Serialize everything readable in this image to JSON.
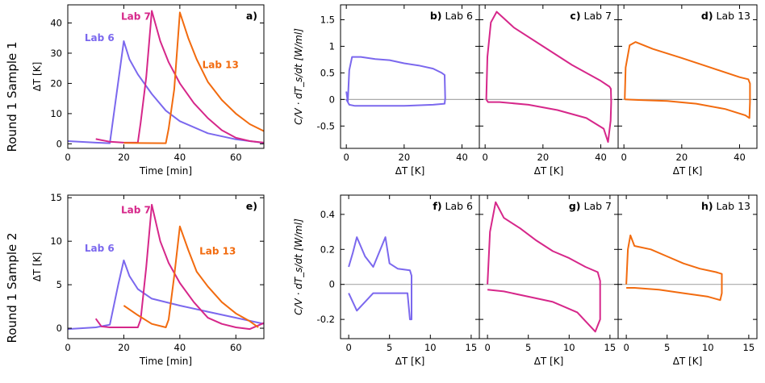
{
  "row_labels": [
    "Round 1 Sample 1",
    "Round 1 Sample 2"
  ],
  "colors": {
    "lab6": "#7b68ee",
    "lab7": "#d6278a",
    "lab13": "#f26b0f",
    "zero_line": "#aaaaaa"
  },
  "chart_data": [
    {
      "type": "line",
      "panel": "a)",
      "title": "",
      "xlabel": "Time  [min]",
      "ylabel": "ΔT   [K]",
      "xlim": [
        0,
        70
      ],
      "ylim": [
        -1.5,
        46
      ],
      "xticks": [
        0,
        20,
        40,
        60
      ],
      "yticks": [
        0,
        10,
        20,
        30,
        40
      ],
      "series": [
        {
          "name": "Lab 6",
          "color_key": "lab6",
          "points": [
            [
              0,
              0.9
            ],
            [
              10,
              0.4
            ],
            [
              15,
              0.2
            ],
            [
              20,
              34
            ],
            [
              22,
              28
            ],
            [
              25,
              23
            ],
            [
              30,
              16.5
            ],
            [
              35,
              11
            ],
            [
              40,
              7.5
            ],
            [
              50,
              3.5
            ],
            [
              60,
              1.5
            ],
            [
              70,
              0.3
            ]
          ]
        },
        {
          "name": "Lab 7",
          "color_key": "lab7",
          "points": [
            [
              10,
              1.6
            ],
            [
              15,
              0.7
            ],
            [
              20,
              0.4
            ],
            [
              25,
              0.4
            ],
            [
              26,
              7
            ],
            [
              28,
              22
            ],
            [
              30,
              44
            ],
            [
              33,
              34
            ],
            [
              36,
              27
            ],
            [
              40,
              20
            ],
            [
              45,
              13.5
            ],
            [
              50,
              8.5
            ],
            [
              55,
              4.5
            ],
            [
              60,
              2
            ],
            [
              65,
              0.9
            ],
            [
              70,
              0.4
            ]
          ]
        },
        {
          "name": "Lab 13",
          "color_key": "lab13",
          "points": [
            [
              20,
              0.3
            ],
            [
              35,
              0.2
            ],
            [
              36,
              5
            ],
            [
              38,
              18
            ],
            [
              40,
              43.5
            ],
            [
              43,
              35
            ],
            [
              46,
              28
            ],
            [
              50,
              20.5
            ],
            [
              55,
              14.5
            ],
            [
              60,
              10
            ],
            [
              65,
              6.5
            ],
            [
              70,
              4.2
            ]
          ]
        }
      ]
    },
    {
      "type": "line",
      "panel": "b)",
      "title": "Lab 6",
      "xlabel": "ΔT   [K]",
      "ylabel": "C/V · dT_s/dt   [W/ml]",
      "xlim": [
        -2,
        46
      ],
      "ylim": [
        -0.92,
        1.78
      ],
      "xticks": [
        0,
        20,
        40
      ],
      "yticks": [
        -0.5,
        0.0,
        0.5,
        1.0,
        1.5
      ],
      "series": [
        {
          "name": "",
          "color_key": "lab6",
          "points": [
            [
              0,
              0.15
            ],
            [
              0.5,
              -0.05
            ],
            [
              1,
              0.55
            ],
            [
              2,
              0.8
            ],
            [
              5,
              0.8
            ],
            [
              10,
              0.76
            ],
            [
              15,
              0.74
            ],
            [
              20,
              0.68
            ],
            [
              25,
              0.64
            ],
            [
              30,
              0.58
            ],
            [
              33,
              0.5
            ],
            [
              34,
              0.46
            ],
            [
              34.2,
              0.02
            ],
            [
              34,
              -0.08
            ],
            [
              30,
              -0.1
            ],
            [
              20,
              -0.12
            ],
            [
              10,
              -0.12
            ],
            [
              3,
              -0.12
            ],
            [
              1,
              -0.1
            ],
            [
              0,
              0.0
            ]
          ]
        }
      ]
    },
    {
      "type": "line",
      "panel": "c)",
      "title": "Lab 7",
      "xlabel": "ΔT   [K]",
      "ylabel": "",
      "xlim": [
        -2,
        46
      ],
      "ylim": [
        -0.92,
        1.78
      ],
      "xticks": [
        0,
        20,
        40
      ],
      "yticks": [
        -0.5,
        0.0,
        0.5,
        1.0,
        1.5
      ],
      "series": [
        {
          "name": "",
          "color_key": "lab7",
          "points": [
            [
              0.4,
              0.0
            ],
            [
              0.8,
              0.8
            ],
            [
              2,
              1.45
            ],
            [
              4,
              1.65
            ],
            [
              10,
              1.35
            ],
            [
              20,
              1.0
            ],
            [
              30,
              0.65
            ],
            [
              40,
              0.35
            ],
            [
              43,
              0.24
            ],
            [
              43.5,
              0.2
            ],
            [
              43.6,
              -0.05
            ],
            [
              43.4,
              -0.4
            ],
            [
              42.5,
              -0.8
            ],
            [
              41,
              -0.55
            ],
            [
              35,
              -0.35
            ],
            [
              25,
              -0.2
            ],
            [
              15,
              -0.1
            ],
            [
              5,
              -0.05
            ],
            [
              1,
              -0.05
            ],
            [
              0.4,
              0.0
            ]
          ]
        }
      ]
    },
    {
      "type": "line",
      "panel": "d)",
      "title": "Lab 13",
      "xlabel": "ΔT   [K]",
      "ylabel": "",
      "xlim": [
        -2,
        46
      ],
      "ylim": [
        -0.92,
        1.78
      ],
      "xticks": [
        0,
        20,
        40
      ],
      "yticks": [
        -0.5,
        0.0,
        0.5,
        1.0,
        1.5
      ],
      "series": [
        {
          "name": "",
          "color_key": "lab13",
          "points": [
            [
              0.3,
              0.0
            ],
            [
              0.6,
              0.6
            ],
            [
              2,
              1.02
            ],
            [
              4,
              1.08
            ],
            [
              10,
              0.95
            ],
            [
              20,
              0.78
            ],
            [
              30,
              0.6
            ],
            [
              40,
              0.42
            ],
            [
              43,
              0.38
            ],
            [
              43.6,
              0.3
            ],
            [
              43.6,
              -0.05
            ],
            [
              43.4,
              -0.35
            ],
            [
              42,
              -0.3
            ],
            [
              35,
              -0.18
            ],
            [
              25,
              -0.08
            ],
            [
              15,
              -0.03
            ],
            [
              5,
              -0.01
            ],
            [
              0.3,
              0.0
            ]
          ]
        }
      ]
    },
    {
      "type": "line",
      "panel": "e)",
      "title": "",
      "xlabel": "Time  [min]",
      "ylabel": "ΔT   [K]",
      "xlim": [
        0,
        70
      ],
      "ylim": [
        -1.2,
        15.3
      ],
      "xticks": [
        0,
        20,
        40,
        60
      ],
      "yticks": [
        0,
        5,
        10,
        15
      ],
      "series": [
        {
          "name": "Lab 6",
          "color_key": "lab6",
          "points": [
            [
              0,
              -0.1
            ],
            [
              10,
              0.1
            ],
            [
              15,
              0.4
            ],
            [
              18,
              5
            ],
            [
              20,
              7.8
            ],
            [
              22,
              6
            ],
            [
              25,
              4.5
            ],
            [
              30,
              3.4
            ],
            [
              40,
              2.6
            ],
            [
              50,
              1.9
            ],
            [
              60,
              1.2
            ],
            [
              70,
              0.5
            ]
          ]
        },
        {
          "name": "Lab 7",
          "color_key": "lab7",
          "points": [
            [
              10,
              1.1
            ],
            [
              12,
              0.2
            ],
            [
              15,
              0.1
            ],
            [
              25,
              0.1
            ],
            [
              26,
              1
            ],
            [
              28,
              7
            ],
            [
              30,
              14.2
            ],
            [
              33,
              10
            ],
            [
              36,
              7.5
            ],
            [
              40,
              5.2
            ],
            [
              45,
              3
            ],
            [
              50,
              1.2
            ],
            [
              55,
              0.5
            ],
            [
              60,
              0.1
            ],
            [
              65,
              -0.1
            ],
            [
              70,
              0.6
            ]
          ]
        },
        {
          "name": "Lab 13",
          "color_key": "lab13",
          "points": [
            [
              20,
              2.6
            ],
            [
              25,
              1.5
            ],
            [
              30,
              0.5
            ],
            [
              35,
              0.1
            ],
            [
              36,
              1
            ],
            [
              38,
              6
            ],
            [
              40,
              11.7
            ],
            [
              43,
              9
            ],
            [
              46,
              6.5
            ],
            [
              50,
              4.8
            ],
            [
              55,
              3
            ],
            [
              60,
              1.7
            ],
            [
              65,
              0.8
            ],
            [
              68,
              0.1
            ]
          ]
        }
      ]
    },
    {
      "type": "line",
      "panel": "f)",
      "title": "Lab 6",
      "xlabel": "ΔT   [K]",
      "ylabel": "C/V · dT_s/dt   [W/ml]",
      "xlim": [
        -1,
        16
      ],
      "ylim": [
        -0.31,
        0.51
      ],
      "xticks": [
        0,
        5,
        10,
        15
      ],
      "yticks": [
        -0.2,
        0.0,
        0.2,
        0.4
      ],
      "series": [
        {
          "name": "",
          "color_key": "lab6",
          "points": [
            [
              0,
              0.1
            ],
            [
              0.5,
              0.18
            ],
            [
              1,
              0.27
            ],
            [
              2,
              0.16
            ],
            [
              3,
              0.1
            ],
            [
              4.5,
              0.27
            ],
            [
              5,
              0.12
            ],
            [
              6,
              0.09
            ],
            [
              7.5,
              0.08
            ],
            [
              7.7,
              0.05
            ],
            [
              7.7,
              -0.2
            ],
            [
              7.5,
              -0.2
            ],
            [
              7.2,
              -0.05
            ],
            [
              5,
              -0.05
            ],
            [
              3,
              -0.05
            ],
            [
              1,
              -0.15
            ],
            [
              0,
              -0.05
            ]
          ]
        }
      ]
    },
    {
      "type": "line",
      "panel": "g)",
      "title": "Lab 7",
      "xlabel": "ΔT   [K]",
      "ylabel": "",
      "xlim": [
        -1,
        16
      ],
      "ylim": [
        -0.31,
        0.51
      ],
      "xticks": [
        0,
        5,
        10,
        15
      ],
      "yticks": [
        -0.2,
        0.0,
        0.2,
        0.4
      ],
      "series": [
        {
          "name": "",
          "color_key": "lab7",
          "points": [
            [
              0,
              0.0
            ],
            [
              0.3,
              0.3
            ],
            [
              1,
              0.47
            ],
            [
              2,
              0.38
            ],
            [
              4,
              0.32
            ],
            [
              6,
              0.25
            ],
            [
              8,
              0.19
            ],
            [
              10,
              0.15
            ],
            [
              12,
              0.1
            ],
            [
              13.5,
              0.07
            ],
            [
              13.8,
              0.02
            ],
            [
              13.8,
              -0.2
            ],
            [
              13.2,
              -0.27
            ],
            [
              11,
              -0.16
            ],
            [
              8,
              -0.1
            ],
            [
              5,
              -0.07
            ],
            [
              2,
              -0.04
            ],
            [
              0,
              -0.03
            ]
          ]
        }
      ]
    },
    {
      "type": "line",
      "panel": "h)",
      "title": "Lab 13",
      "xlabel": "ΔT   [K]",
      "ylabel": "",
      "xlim": [
        -1,
        16
      ],
      "ylim": [
        -0.31,
        0.51
      ],
      "xticks": [
        0,
        5,
        10,
        15
      ],
      "yticks": [
        -0.2,
        0.0,
        0.2,
        0.4
      ],
      "series": [
        {
          "name": "",
          "color_key": "lab13",
          "points": [
            [
              0,
              0.0
            ],
            [
              0.2,
              0.2
            ],
            [
              0.5,
              0.28
            ],
            [
              1,
              0.22
            ],
            [
              3,
              0.2
            ],
            [
              5,
              0.16
            ],
            [
              7,
              0.12
            ],
            [
              9,
              0.09
            ],
            [
              11,
              0.07
            ],
            [
              11.7,
              0.06
            ],
            [
              11.7,
              -0.05
            ],
            [
              11.5,
              -0.09
            ],
            [
              10,
              -0.07
            ],
            [
              7,
              -0.05
            ],
            [
              4,
              -0.03
            ],
            [
              1,
              -0.02
            ],
            [
              0,
              -0.02
            ]
          ]
        }
      ]
    }
  ],
  "inline_labels": [
    {
      "panel": 0,
      "series": 1,
      "text": "Lab 7",
      "at": [
        19,
        41
      ]
    },
    {
      "panel": 0,
      "series": 0,
      "text": "Lab 6",
      "at": [
        6,
        34
      ]
    },
    {
      "panel": 0,
      "series": 2,
      "text": "Lab 13",
      "at": [
        48,
        25
      ]
    },
    {
      "panel": 4,
      "series": 1,
      "text": "Lab 7",
      "at": [
        19,
        13.2
      ]
    },
    {
      "panel": 4,
      "series": 0,
      "text": "Lab 6",
      "at": [
        6,
        8.8
      ]
    },
    {
      "panel": 4,
      "series": 2,
      "text": "Lab 13",
      "at": [
        47,
        8.5
      ]
    }
  ]
}
